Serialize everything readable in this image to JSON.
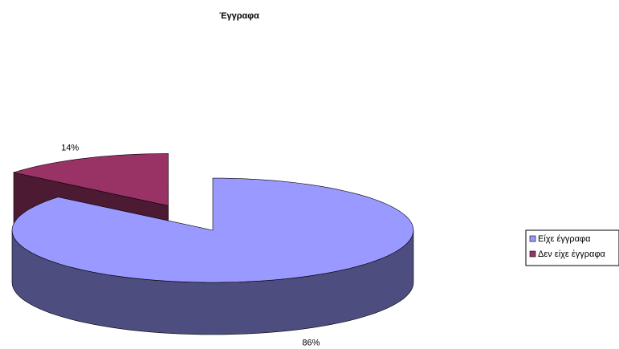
{
  "chart_data": {
    "type": "pie3d",
    "title": "Έγγραφα",
    "categories": [
      "Είχε έγγραφα",
      "Δεν είχε έγγραφα"
    ],
    "values": [
      86,
      14
    ],
    "value_labels": [
      "86%",
      "14%"
    ],
    "colors": [
      "#9999ff",
      "#993366"
    ],
    "side_colors": [
      "#4d4d80",
      "#4d1a33"
    ],
    "legend": "right"
  }
}
